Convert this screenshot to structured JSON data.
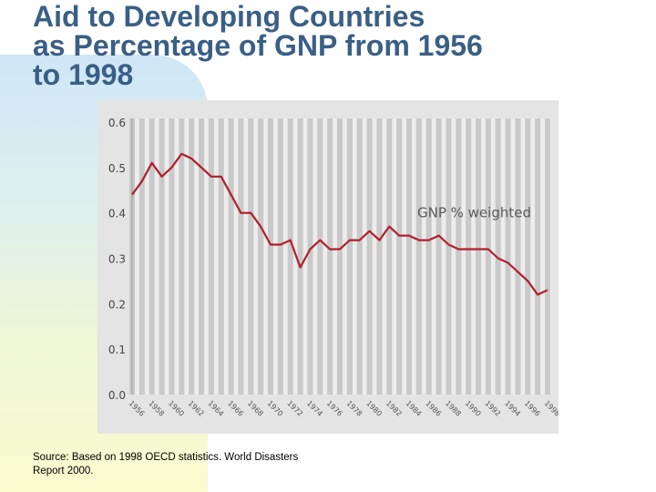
{
  "slide": {
    "title": "Aid to Developing Countries\nas  Percentage of GNP from 1956\nto 1998",
    "source": "Source: Based on 1998 OECD statistics. World Disasters\nReport 2000."
  },
  "chart_data": {
    "type": "line",
    "x": [
      1956,
      1957,
      1958,
      1959,
      1960,
      1961,
      1962,
      1963,
      1964,
      1965,
      1966,
      1967,
      1968,
      1969,
      1970,
      1971,
      1972,
      1973,
      1974,
      1975,
      1976,
      1977,
      1978,
      1979,
      1980,
      1981,
      1982,
      1983,
      1984,
      1985,
      1986,
      1987,
      1988,
      1989,
      1990,
      1991,
      1992,
      1993,
      1994,
      1995,
      1996,
      1997,
      1998
    ],
    "series": [
      {
        "name": "",
        "color": "#b01e2a",
        "values": [
          0.44,
          0.47,
          0.51,
          0.48,
          0.5,
          0.53,
          0.52,
          0.5,
          0.48,
          0.48,
          0.44,
          0.4,
          0.4,
          0.37,
          0.33,
          0.33,
          0.34,
          0.28,
          0.32,
          0.34,
          0.32,
          0.32,
          0.34,
          0.34,
          0.36,
          0.34,
          0.37,
          0.35,
          0.35,
          0.34,
          0.34,
          0.35,
          0.33,
          0.32,
          0.32,
          0.32,
          0.32,
          0.3,
          0.29,
          0.27,
          0.25,
          0.22,
          0.23
        ]
      }
    ],
    "annotation": "GNP % weighted",
    "x_tick_labels": [
      "1956",
      "1958",
      "1960",
      "1962",
      "1964",
      "1966",
      "1968",
      "1970",
      "1972",
      "1974",
      "1976",
      "1978",
      "1980",
      "1982",
      "1984",
      "1986",
      "1988",
      "1990",
      "1992",
      "1994",
      "1996",
      "1998"
    ],
    "y_tick_labels": [
      "0.0",
      "0.1",
      "0.2",
      "0.3",
      "0.4",
      "0.5",
      "0.6"
    ],
    "xlabel": "",
    "ylabel": "",
    "ylim": [
      0,
      0.6
    ],
    "grid": "vertical stripes"
  }
}
